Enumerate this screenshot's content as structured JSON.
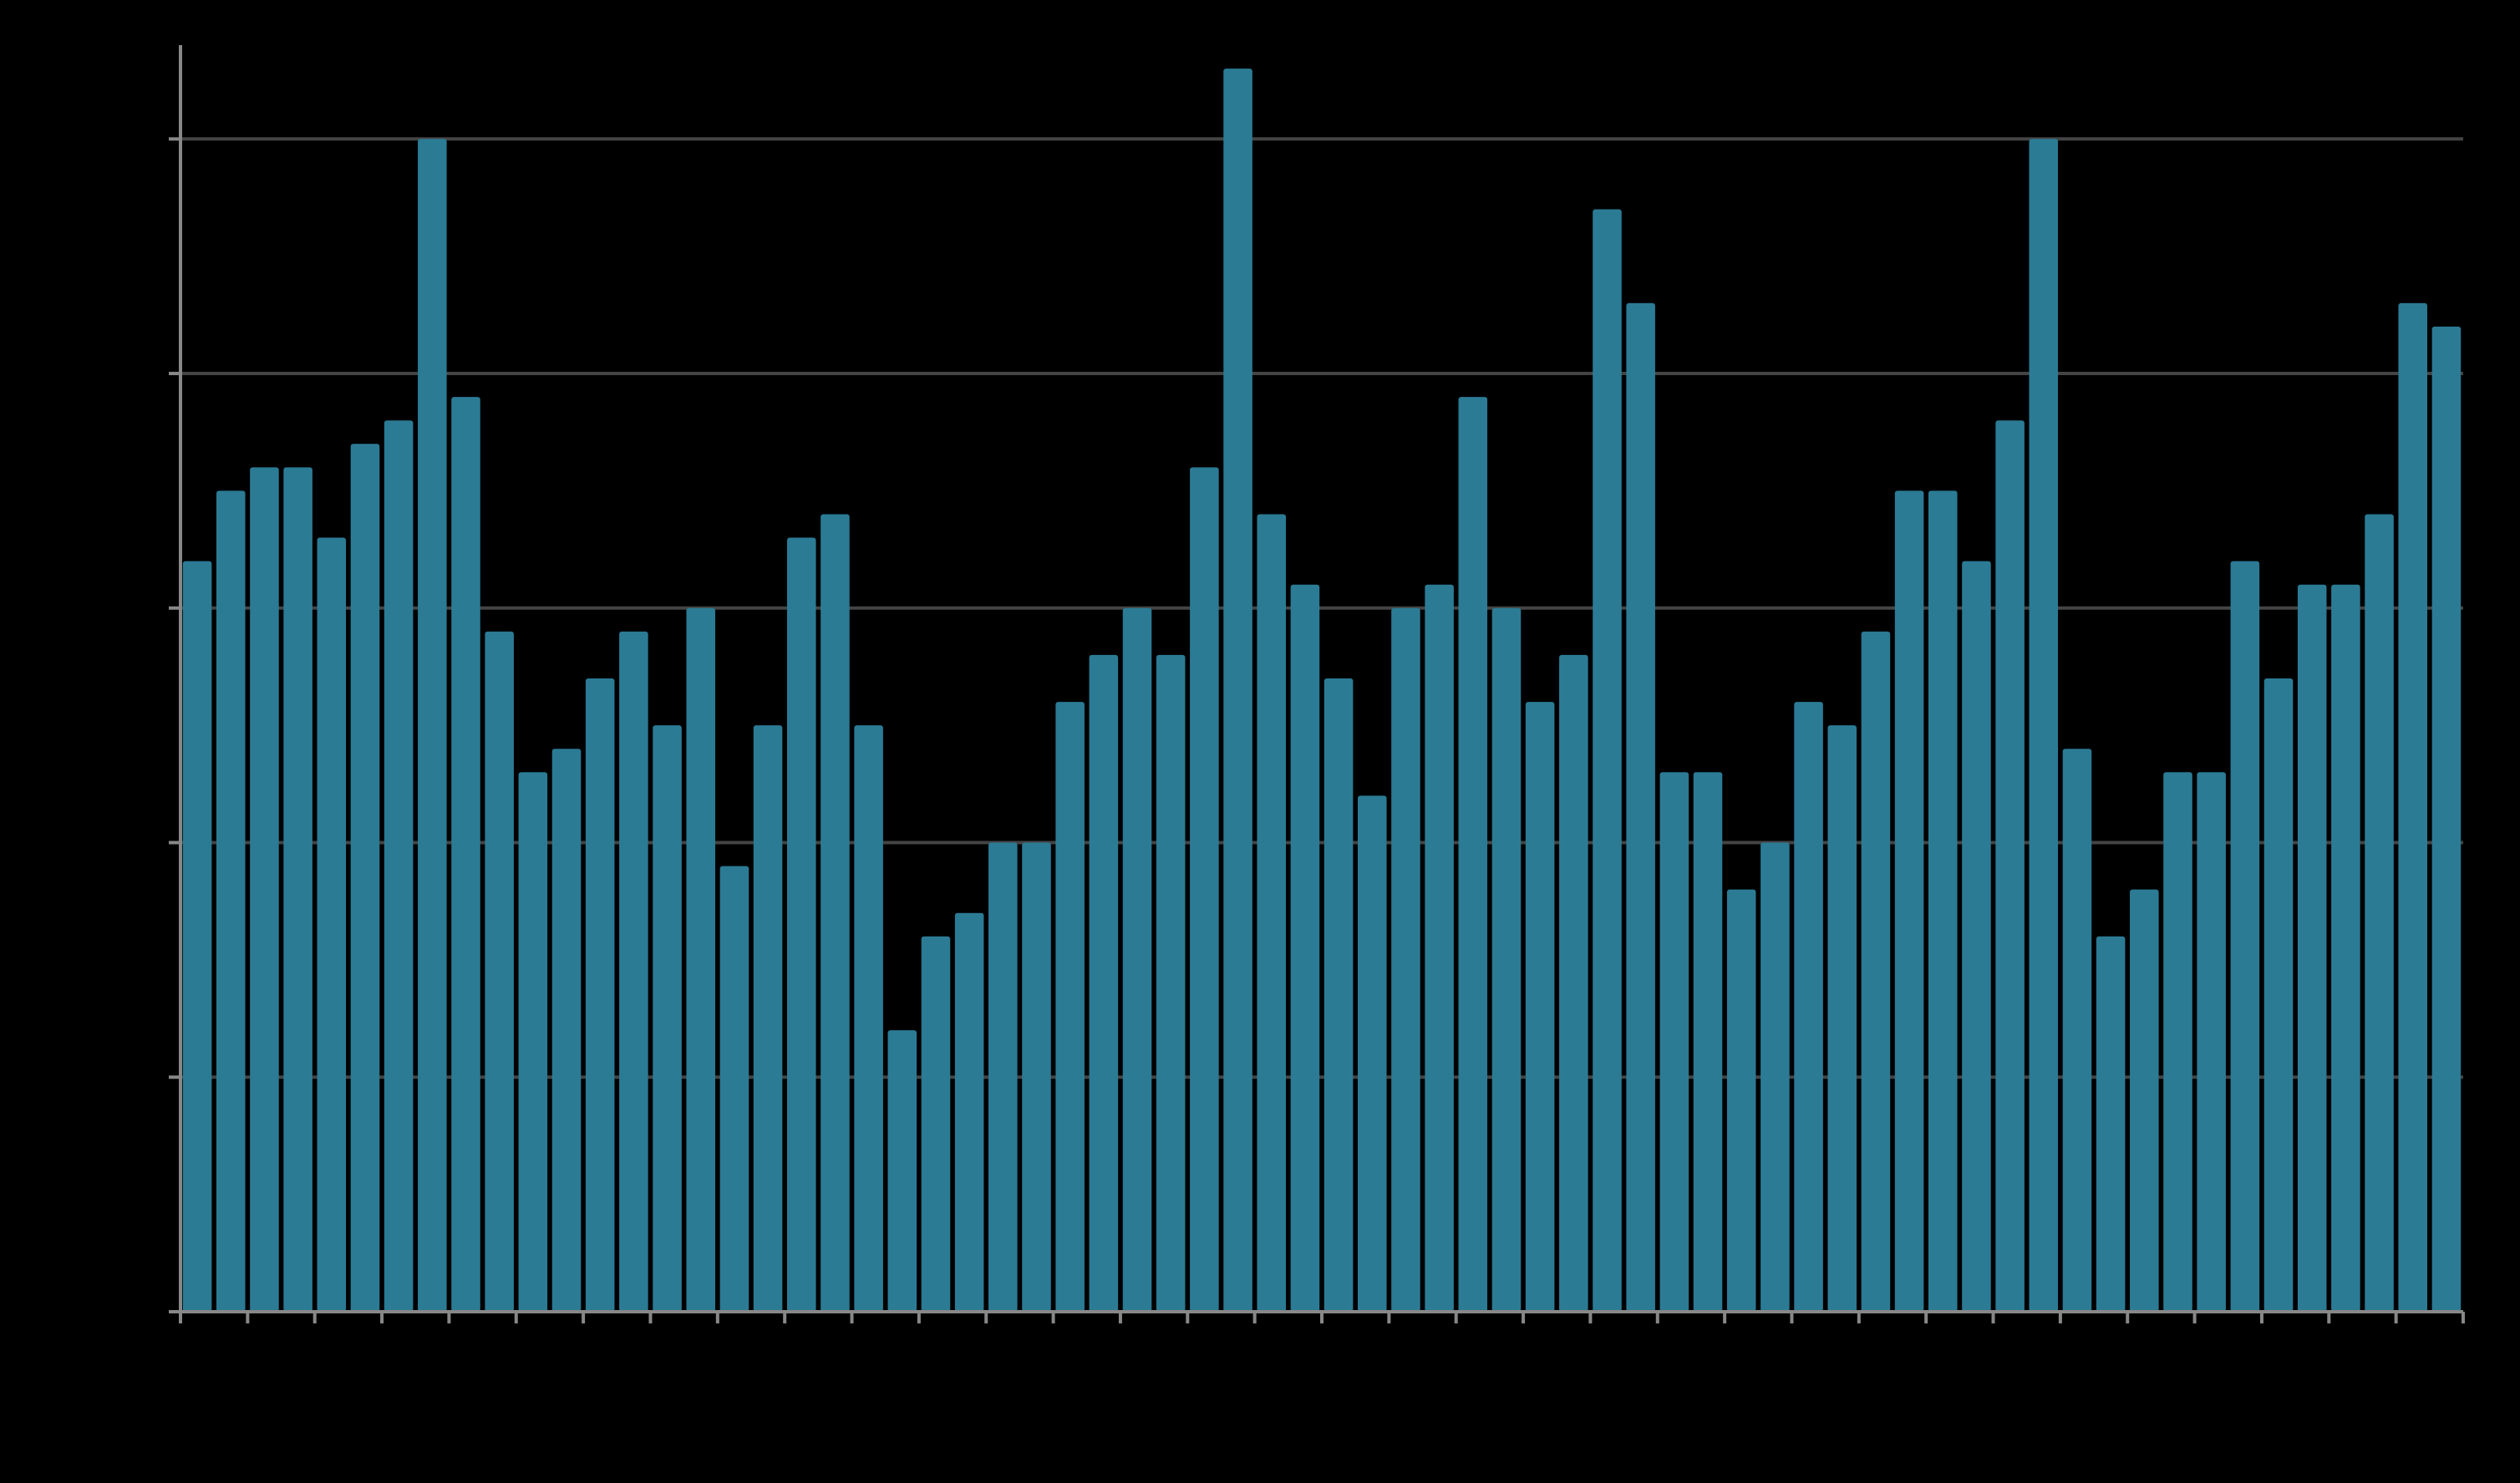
{
  "chart_data": {
    "type": "bar",
    "title": "",
    "xlabel": "",
    "ylabel": "",
    "values": [
      32,
      35,
      36,
      36,
      33,
      37,
      38,
      50,
      39,
      29,
      23,
      24,
      27,
      29,
      25,
      30,
      19,
      25,
      33,
      34,
      25,
      12,
      16,
      17,
      20,
      20,
      26,
      28,
      30,
      28,
      36,
      53,
      34,
      31,
      27,
      22,
      30,
      31,
      39,
      30,
      26,
      28,
      47,
      43,
      23,
      23,
      18,
      20,
      26,
      25,
      29,
      35,
      35,
      32,
      38,
      50,
      24,
      16,
      18,
      23,
      23,
      32,
      27,
      31,
      31,
      34,
      43,
      42
    ],
    "ylim": [
      0,
      54
    ],
    "y_gridlines": [
      10,
      20,
      30,
      40,
      50
    ],
    "grid": true,
    "legend": "none",
    "colors": {
      "background": "#000000",
      "bar": "#2b7b95",
      "axis": "#888888",
      "grid": "#444444"
    }
  }
}
